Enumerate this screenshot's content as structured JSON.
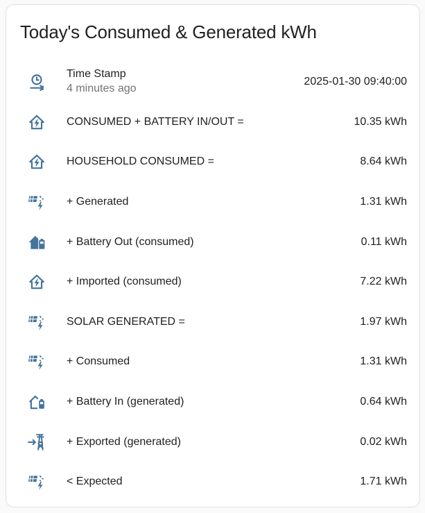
{
  "card": {
    "title": "Today's Consumed & Generated kWh"
  },
  "colors": {
    "icon": "#44739e",
    "text": "#212121",
    "secondary_text": "#737373"
  },
  "timestamp_row": {
    "icon": "clock-arrow-icon",
    "label": "Time Stamp",
    "secondary": "4 minutes ago",
    "value": "2025-01-30 09:40:00"
  },
  "rows": [
    {
      "icon": "home-lightning-icon",
      "label": "CONSUMED + BATTERY IN/OUT =",
      "value": "10.35 kWh"
    },
    {
      "icon": "home-lightning-icon",
      "label": "HOUSEHOLD CONSUMED =",
      "value": "8.64 kWh"
    },
    {
      "icon": "solar-power-icon",
      "label": "+ Generated",
      "value": "1.31 kWh"
    },
    {
      "icon": "home-battery-icon",
      "label": "+ Battery Out (consumed)",
      "value": "0.11 kWh"
    },
    {
      "icon": "home-lightning-icon",
      "label": "+ Imported (consumed)",
      "value": "7.22 kWh"
    },
    {
      "icon": "solar-power-icon",
      "label": "SOLAR GENERATED =",
      "value": "1.97 kWh"
    },
    {
      "icon": "solar-power-icon",
      "label": "+ Consumed",
      "value": "1.31 kWh"
    },
    {
      "icon": "home-battery-outline-icon",
      "label": "+ Battery In (generated)",
      "value": "0.64 kWh"
    },
    {
      "icon": "transmission-tower-import-icon",
      "label": "+ Exported (generated)",
      "value": "0.02 kWh"
    },
    {
      "icon": "solar-power-icon",
      "label": "< Expected",
      "value": "1.71 kWh"
    }
  ]
}
